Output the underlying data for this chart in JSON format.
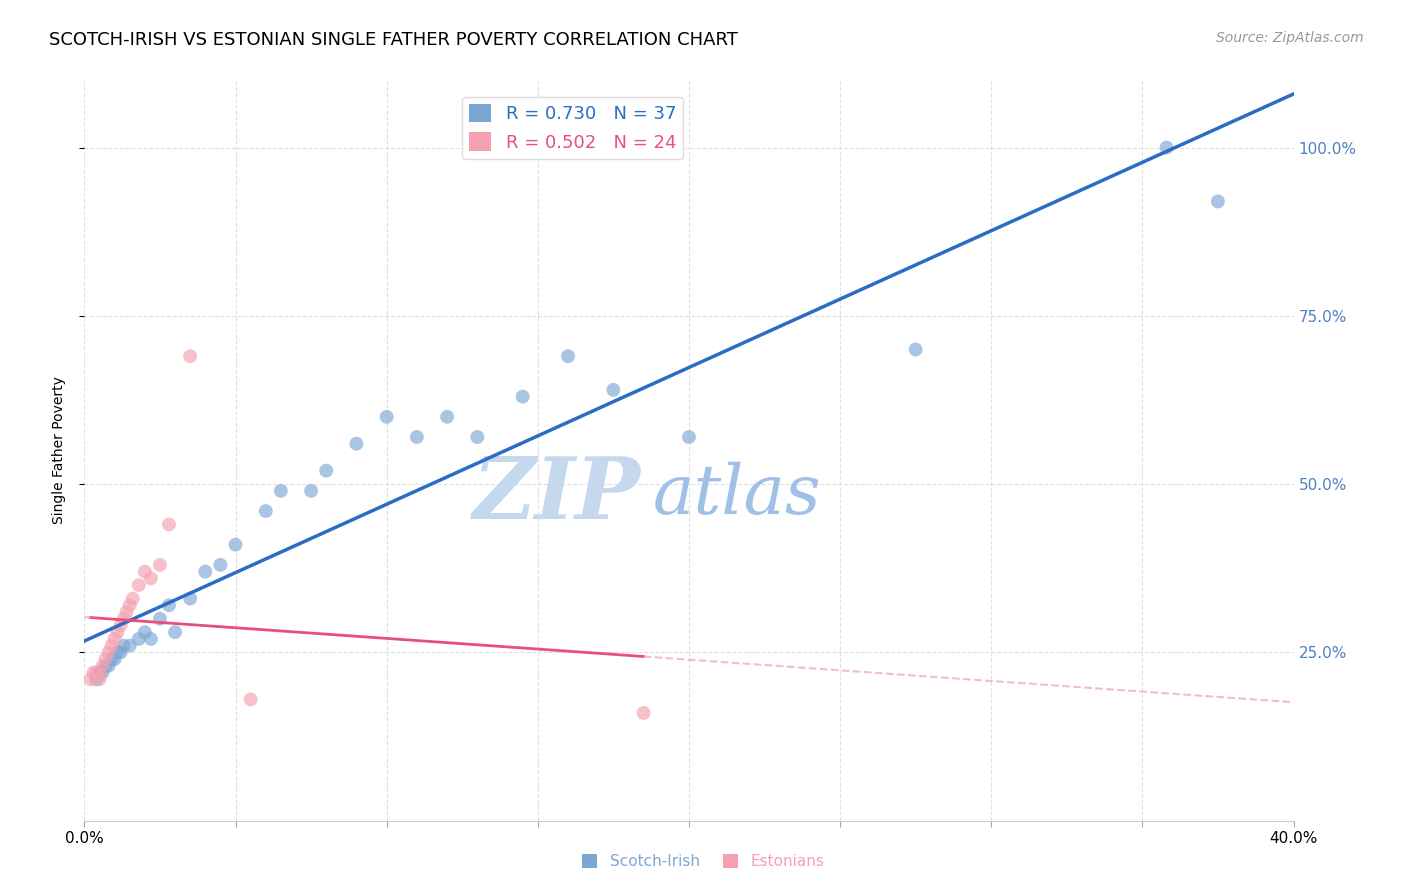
{
  "title": "SCOTCH-IRISH VS ESTONIAN SINGLE FATHER POVERTY CORRELATION CHART",
  "source": "Source: ZipAtlas.com",
  "ylabel": "Single Father Poverty",
  "xlim": [
    0.0,
    0.4
  ],
  "ylim": [
    0.0,
    1.1
  ],
  "x_ticks": [
    0.0,
    0.05,
    0.1,
    0.15,
    0.2,
    0.25,
    0.3,
    0.35,
    0.4
  ],
  "x_tick_labels": [
    "0.0%",
    "",
    "",
    "",
    "",
    "",
    "",
    "",
    "40.0%"
  ],
  "y_ticks": [
    0.25,
    0.5,
    0.75,
    1.0
  ],
  "y_tick_labels": [
    "25.0%",
    "50.0%",
    "75.0%",
    "100.0%"
  ],
  "scotch_irish_x": [
    0.004,
    0.005,
    0.006,
    0.007,
    0.008,
    0.009,
    0.01,
    0.011,
    0.012,
    0.013,
    0.015,
    0.018,
    0.02,
    0.022,
    0.025,
    0.028,
    0.03,
    0.035,
    0.04,
    0.045,
    0.05,
    0.06,
    0.065,
    0.075,
    0.08,
    0.09,
    0.1,
    0.11,
    0.12,
    0.13,
    0.145,
    0.16,
    0.175,
    0.2,
    0.275,
    0.358,
    0.375
  ],
  "scotch_irish_y": [
    0.21,
    0.22,
    0.22,
    0.23,
    0.23,
    0.24,
    0.24,
    0.25,
    0.25,
    0.26,
    0.26,
    0.27,
    0.28,
    0.27,
    0.3,
    0.32,
    0.28,
    0.33,
    0.37,
    0.38,
    0.41,
    0.46,
    0.49,
    0.49,
    0.52,
    0.56,
    0.6,
    0.57,
    0.6,
    0.57,
    0.63,
    0.69,
    0.64,
    0.57,
    0.7,
    1.0,
    0.92
  ],
  "estonian_x": [
    0.002,
    0.003,
    0.004,
    0.005,
    0.005,
    0.006,
    0.007,
    0.008,
    0.009,
    0.01,
    0.011,
    0.012,
    0.013,
    0.014,
    0.015,
    0.016,
    0.018,
    0.02,
    0.022,
    0.025,
    0.028,
    0.035,
    0.055,
    0.185
  ],
  "estonian_y": [
    0.21,
    0.22,
    0.22,
    0.21,
    0.22,
    0.23,
    0.24,
    0.25,
    0.26,
    0.27,
    0.28,
    0.29,
    0.3,
    0.31,
    0.32,
    0.33,
    0.35,
    0.37,
    0.36,
    0.38,
    0.44,
    0.69,
    0.18,
    0.16
  ],
  "scotch_irish_R": 0.73,
  "scotch_irish_N": 37,
  "estonian_R": 0.502,
  "estonian_N": 24,
  "scotch_irish_color": "#7BA7D4",
  "estonian_color": "#F4A0B0",
  "scotch_irish_line_color": "#2B6CC4",
  "estonian_line_color": "#E8507A",
  "estonian_line_dash_color": "#E8B0C0",
  "watermark_zip_color": "#C5D8EE",
  "watermark_atlas_color": "#A0C0E8",
  "background_color": "#FFFFFF",
  "grid_color": "#DDDDDD",
  "right_axis_color": "#5080C0",
  "title_fontsize": 13,
  "source_fontsize": 10,
  "legend_fontsize": 13,
  "axis_label_fontsize": 10,
  "tick_fontsize": 11,
  "marker_size": 100
}
